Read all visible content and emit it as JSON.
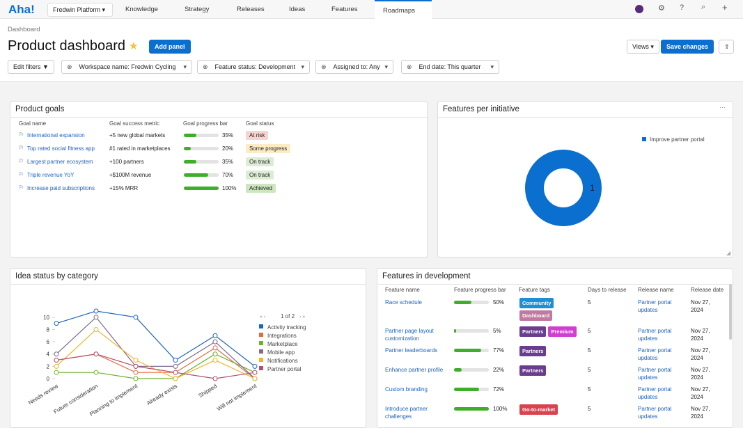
{
  "nav": {
    "logo": "Aha!",
    "workspace": "Fredwin Platform",
    "items": [
      "Knowledge",
      "Strategy",
      "Releases",
      "Ideas",
      "Features",
      "Roadmaps"
    ]
  },
  "header": {
    "breadcrumb": "Dashboard",
    "title": "Product dashboard",
    "add_panel": "Add panel",
    "views": "Views",
    "save": "Save changes"
  },
  "filters": {
    "edit": "Edit filters",
    "items": [
      "Workspace name: Fredwin Cycling",
      "Feature status: Development",
      "Assigned to: Any",
      "End date: This quarter"
    ]
  },
  "product_goals": {
    "title": "Product goals",
    "columns": [
      "Goal name",
      "Goal success metric",
      "Goal progress bar",
      "Goal status"
    ],
    "rows": [
      {
        "name": "International expansion",
        "metric": "+5 new global markets",
        "progress": 35,
        "progress_label": "35%",
        "status": "At risk",
        "status_color": "#f7d4cf"
      },
      {
        "name": "Top rated social fitness app",
        "metric": "#1 rated in marketplaces",
        "progress": 20,
        "progress_label": "20%",
        "status": "Some progress",
        "status_color": "#fbecc4"
      },
      {
        "name": "Largest partner ecosystem",
        "metric": "+100 partners",
        "progress": 35,
        "progress_label": "35%",
        "status": "On track",
        "status_color": "#dcedd3"
      },
      {
        "name": "Triple revenue YoY",
        "metric": "+$100M revenue",
        "progress": 70,
        "progress_label": "70%",
        "status": "On track",
        "status_color": "#dcedd3"
      },
      {
        "name": "Increase paid subscriptions",
        "metric": "+15% MRR",
        "progress": 100,
        "progress_label": "100%",
        "status": "Achieved",
        "status_color": "#cde6c0"
      }
    ]
  },
  "chart_data": [
    {
      "type": "pie",
      "title": "Features per initiative",
      "categories": [
        "Improve partner portal"
      ],
      "values": [
        1
      ],
      "colors": [
        "#0b6fcf"
      ],
      "donut": true,
      "legend": "top-right"
    },
    {
      "type": "line",
      "title": "Idea status by category",
      "categories": [
        "Needs review",
        "Future consideration",
        "Planning to implement",
        "Already exists",
        "Shipped",
        "Will not implement"
      ],
      "series": [
        {
          "name": "Activity tracking",
          "color": "#1c64c2",
          "values": [
            9,
            11,
            10,
            3,
            7,
            2
          ]
        },
        {
          "name": "Integrations",
          "color": "#e8693f",
          "values": [
            3,
            4,
            1,
            1,
            5,
            0
          ]
        },
        {
          "name": "Marketplace",
          "color": "#6fb02a",
          "values": [
            1,
            1,
            0,
            0,
            4,
            1
          ]
        },
        {
          "name": "Mobile app",
          "color": "#7d6a8f",
          "values": [
            4,
            10,
            2,
            2,
            6,
            0
          ]
        },
        {
          "name": "Notifications",
          "color": "#f0b429",
          "values": [
            2,
            8,
            3,
            0,
            3,
            0
          ]
        },
        {
          "name": "Partner portal",
          "color": "#b04f6e",
          "values": [
            3,
            4,
            2,
            1,
            0,
            1
          ]
        }
      ],
      "ylim": [
        0,
        11
      ],
      "yticks": [
        0,
        2,
        4,
        6,
        8,
        10
      ],
      "grid": false,
      "legend": "right",
      "pagination": "1 of 2"
    }
  ],
  "features_in_development": {
    "title": "Features in development",
    "columns": [
      "Feature name",
      "Feature progress bar",
      "Feature tags",
      "Days to release",
      "Release name",
      "Release date"
    ],
    "rows": [
      {
        "name": "Race schedule",
        "progress": 50,
        "progress_label": "50%",
        "tags": [
          {
            "text": "Community",
            "color": "#1e8fd6"
          },
          {
            "text": "Dashboard",
            "color": "#c07a9f"
          }
        ],
        "days": "5",
        "release": "Partner portal updates",
        "date": "Nov 27, 2024"
      },
      {
        "name": "Partner page layout customization",
        "progress": 5,
        "progress_label": "5%",
        "tags": [
          {
            "text": "Partners",
            "color": "#6b3d8f"
          },
          {
            "text": "Premium",
            "color": "#d13ed1"
          }
        ],
        "days": "5",
        "release": "Partner portal updates",
        "date": "Nov 27, 2024"
      },
      {
        "name": "Partner leaderboards",
        "progress": 77,
        "progress_label": "77%",
        "tags": [
          {
            "text": "Partners",
            "color": "#6b3d8f"
          }
        ],
        "days": "5",
        "release": "Partner portal updates",
        "date": "Nov 27, 2024"
      },
      {
        "name": "Enhance partner profile",
        "progress": 22,
        "progress_label": "22%",
        "tags": [
          {
            "text": "Partners",
            "color": "#6b3d8f"
          }
        ],
        "days": "5",
        "release": "Partner portal updates",
        "date": "Nov 27, 2024"
      },
      {
        "name": "Custom branding",
        "progress": 72,
        "progress_label": "72%",
        "tags": [],
        "days": "5",
        "release": "Partner portal updates",
        "date": "Nov 27, 2024"
      },
      {
        "name": "Introduce partner challenges",
        "progress": 100,
        "progress_label": "100%",
        "tags": [
          {
            "text": "Go-to-market",
            "color": "#d9434f"
          }
        ],
        "days": "5",
        "release": "Partner portal updates",
        "date": "Nov 27, 2024"
      }
    ]
  }
}
